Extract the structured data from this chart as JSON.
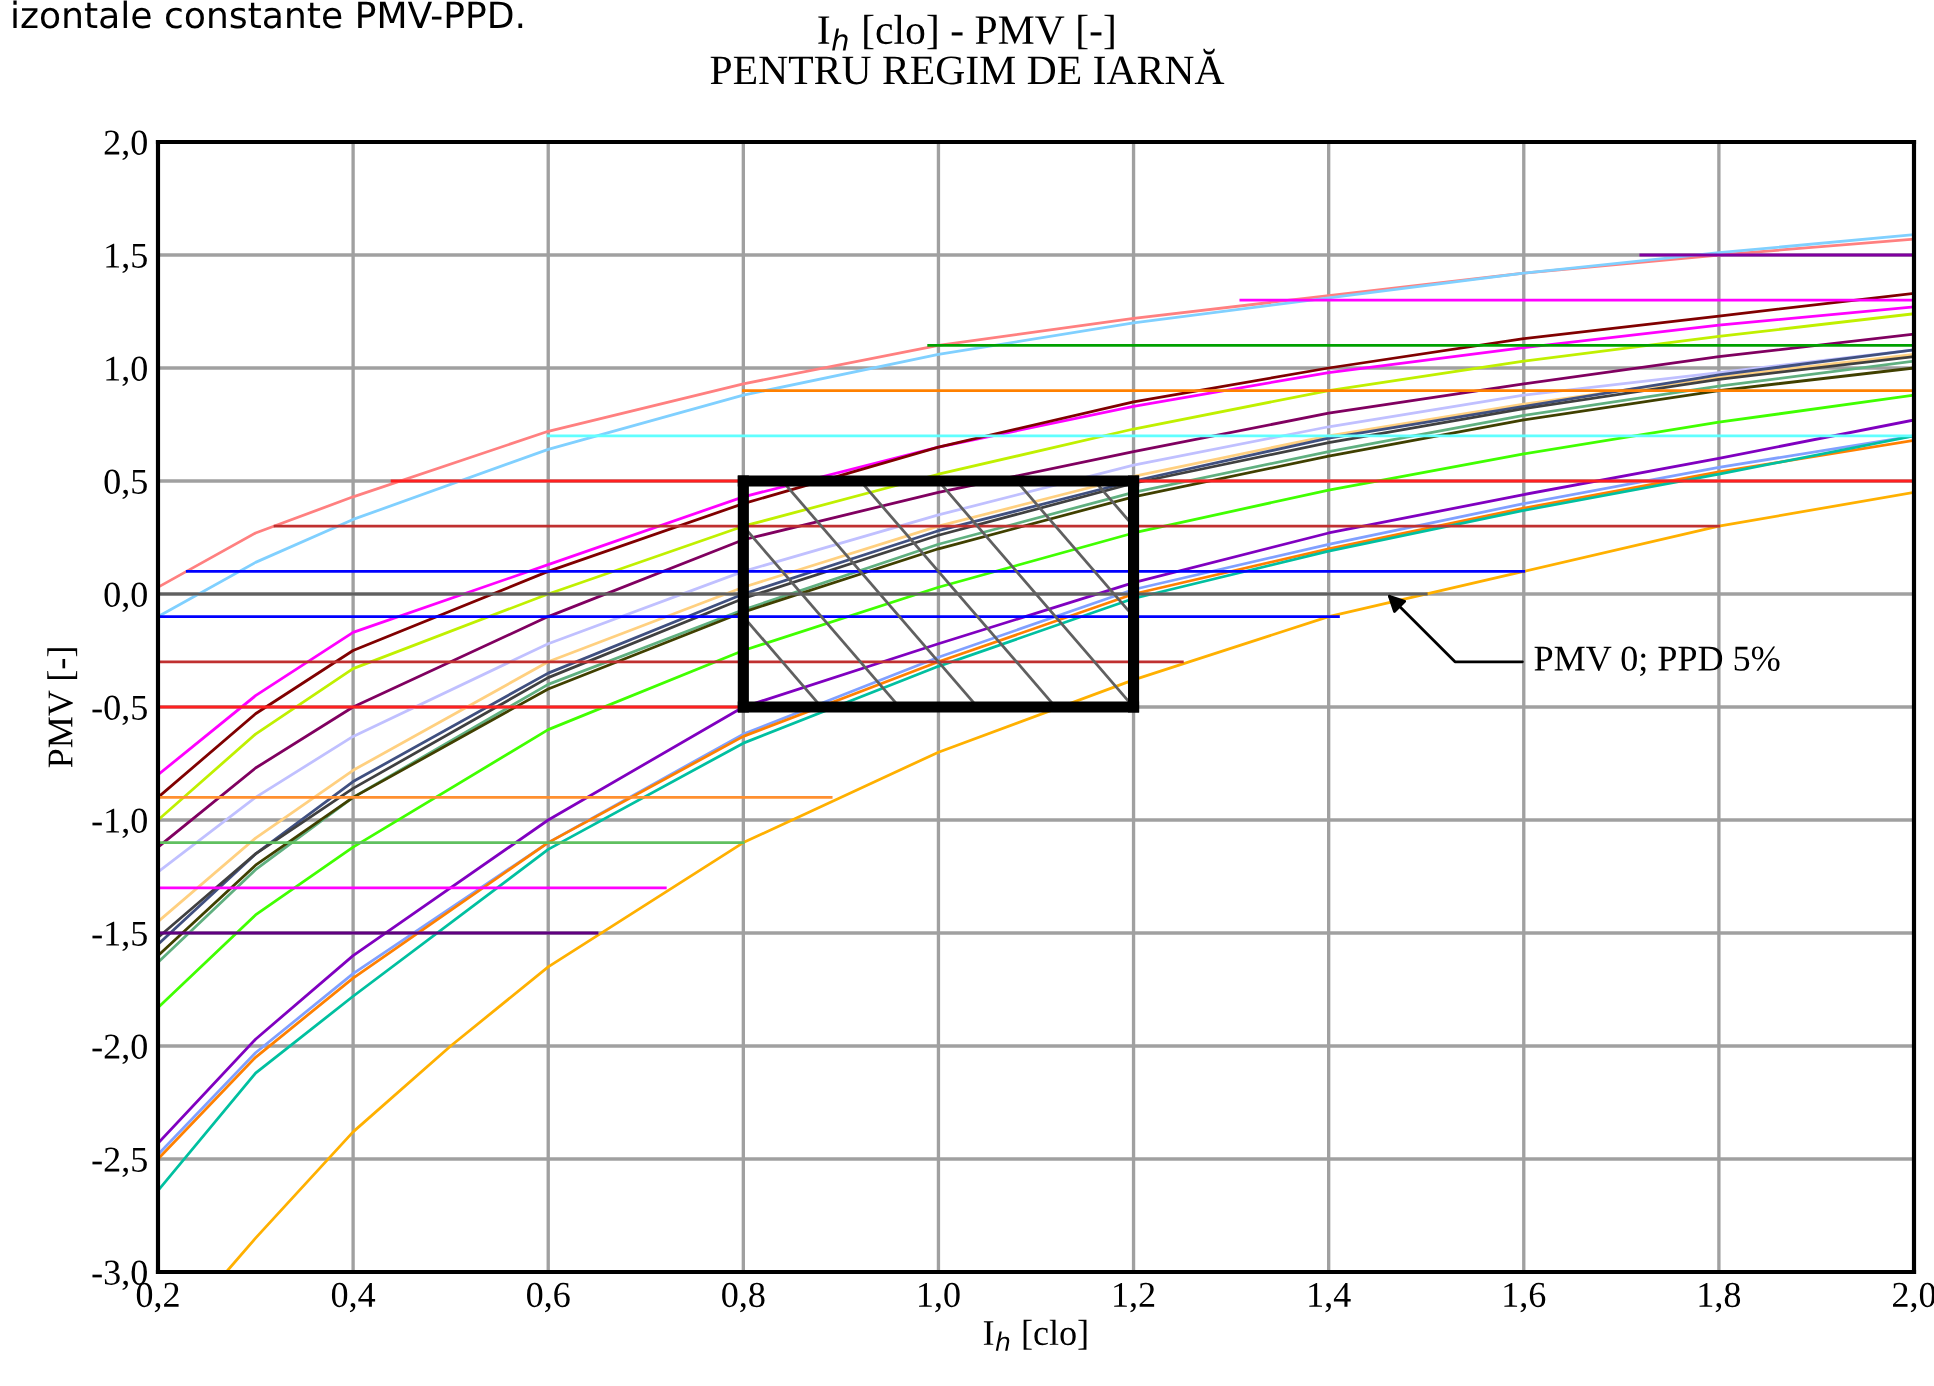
{
  "chart_data": {
    "type": "line",
    "title": "I$_{h}$ [clo] - PMV [-]",
    "subtitle": "PENTRU REGIM DE IARNĂ",
    "xlabel": "I$_{h}$ [clo]",
    "ylabel": "PMV [-]",
    "xlim": [
      0.2,
      2.0
    ],
    "ylim": [
      -3.0,
      2.0
    ],
    "xticks": [
      {
        "value": 0.2,
        "label": "0,2"
      },
      {
        "value": 0.4,
        "label": "0,4"
      },
      {
        "value": 0.6,
        "label": "0,6"
      },
      {
        "value": 0.8,
        "label": "0,8"
      },
      {
        "value": 1.0,
        "label": "1,0"
      },
      {
        "value": 1.2,
        "label": "1,2"
      },
      {
        "value": 1.4,
        "label": "1,4"
      },
      {
        "value": 1.6,
        "label": "1,6"
      },
      {
        "value": 1.8,
        "label": "1,8"
      },
      {
        "value": 2.0,
        "label": "2,0"
      }
    ],
    "yticks": [
      {
        "value": -3.0,
        "label": "-3,0"
      },
      {
        "value": -2.5,
        "label": "-2,5"
      },
      {
        "value": -2.0,
        "label": "-2,0"
      },
      {
        "value": -1.5,
        "label": "-1,5"
      },
      {
        "value": -1.0,
        "label": "-1,0"
      },
      {
        "value": -0.5,
        "label": "-0,5"
      },
      {
        "value": 0.0,
        "label": "0,0"
      },
      {
        "value": 0.5,
        "label": "0,5"
      },
      {
        "value": 1.0,
        "label": "1,0"
      },
      {
        "value": 1.5,
        "label": "1,5"
      },
      {
        "value": 2.0,
        "label": "2,0"
      }
    ],
    "grid": true,
    "legend": false,
    "marker": "none",
    "line_style": "solid",
    "annotations": [
      "izontale constante PMV-PPD.",
      {
        "text": "PMV 0; PPD 5%",
        "x": 1.46,
        "y": 0.0
      }
    ],
    "series": [
      {
        "color": "#ff8080",
        "x": [
          0.2,
          0.3,
          0.4,
          0.6,
          0.8,
          1.0,
          1.2,
          1.4,
          1.6,
          1.8,
          2.0
        ],
        "values": [
          0.03,
          0.27,
          0.43,
          0.72,
          0.93,
          1.1,
          1.22,
          1.32,
          1.42,
          1.5,
          1.57
        ]
      },
      {
        "color": "#80d0ff",
        "x": [
          0.2,
          0.3,
          0.4,
          0.6,
          0.8,
          1.0,
          1.2,
          1.4,
          1.6,
          1.8,
          2.0
        ],
        "values": [
          -0.1,
          0.14,
          0.33,
          0.64,
          0.88,
          1.06,
          1.2,
          1.31,
          1.42,
          1.51,
          1.59
        ]
      },
      {
        "color": "#ff00ff",
        "x": [
          0.2,
          0.3,
          0.4,
          0.6,
          0.8,
          1.0,
          1.2,
          1.4,
          1.6,
          1.8,
          2.0
        ],
        "values": [
          -0.8,
          -0.45,
          -0.17,
          0.13,
          0.43,
          0.65,
          0.83,
          0.98,
          1.09,
          1.19,
          1.27
        ]
      },
      {
        "color": "#800000",
        "x": [
          0.2,
          0.3,
          0.4,
          0.6,
          0.8,
          1.0,
          1.2,
          1.4,
          1.6,
          1.8,
          2.0
        ],
        "values": [
          -0.9,
          -0.53,
          -0.25,
          0.1,
          0.4,
          0.65,
          0.85,
          1.0,
          1.13,
          1.23,
          1.33
        ]
      },
      {
        "color": "#c0f000",
        "x": [
          0.2,
          0.3,
          0.4,
          0.6,
          0.8,
          1.0,
          1.2,
          1.4,
          1.6,
          1.8,
          2.0
        ],
        "values": [
          -1.0,
          -0.62,
          -0.33,
          0.0,
          0.3,
          0.53,
          0.73,
          0.9,
          1.03,
          1.14,
          1.24
        ]
      },
      {
        "color": "#800060",
        "x": [
          0.2,
          0.3,
          0.4,
          0.6,
          0.8,
          1.0,
          1.2,
          1.4,
          1.6,
          1.8,
          2.0
        ],
        "values": [
          -1.12,
          -0.77,
          -0.5,
          -0.1,
          0.24,
          0.45,
          0.63,
          0.8,
          0.93,
          1.05,
          1.15
        ]
      },
      {
        "color": "#c0c0ff",
        "x": [
          0.2,
          0.3,
          0.4,
          0.6,
          0.8,
          1.0,
          1.2,
          1.4,
          1.6,
          1.8,
          2.0
        ],
        "values": [
          -1.23,
          -0.9,
          -0.63,
          -0.22,
          0.1,
          0.35,
          0.57,
          0.74,
          0.88,
          0.98,
          1.08
        ]
      },
      {
        "color": "#ffd080",
        "x": [
          0.2,
          0.3,
          0.4,
          0.6,
          0.8,
          1.0,
          1.2,
          1.4,
          1.6,
          1.8,
          2.0
        ],
        "values": [
          -1.45,
          -1.08,
          -0.78,
          -0.3,
          0.03,
          0.3,
          0.52,
          0.7,
          0.84,
          0.96,
          1.06
        ]
      },
      {
        "color": "#405080",
        "x": [
          0.2,
          0.3,
          0.4,
          0.6,
          0.8,
          1.0,
          1.2,
          1.4,
          1.6,
          1.8,
          2.0
        ],
        "values": [
          -1.55,
          -1.15,
          -0.83,
          -0.35,
          0.0,
          0.28,
          0.5,
          0.69,
          0.83,
          0.97,
          1.08
        ]
      },
      {
        "color": "#404040",
        "x": [
          0.2,
          0.3,
          0.4,
          0.6,
          0.8,
          1.0,
          1.2,
          1.4,
          1.6,
          1.8,
          2.0
        ],
        "values": [
          -1.52,
          -1.15,
          -0.86,
          -0.37,
          -0.02,
          0.26,
          0.49,
          0.67,
          0.82,
          0.95,
          1.05
        ]
      },
      {
        "color": "#60b080",
        "x": [
          0.2,
          0.3,
          0.4,
          0.6,
          0.8,
          1.0,
          1.2,
          1.4,
          1.6,
          1.8,
          2.0
        ],
        "values": [
          -1.63,
          -1.22,
          -0.9,
          -0.4,
          -0.07,
          0.22,
          0.45,
          0.63,
          0.79,
          0.92,
          1.03
        ]
      },
      {
        "color": "#404000",
        "x": [
          0.2,
          0.3,
          0.4,
          0.6,
          0.8,
          1.0,
          1.2,
          1.4,
          1.6,
          1.8,
          2.0
        ],
        "values": [
          -1.6,
          -1.2,
          -0.9,
          -0.42,
          -0.08,
          0.2,
          0.43,
          0.61,
          0.77,
          0.9,
          1.0
        ]
      },
      {
        "color": "#40ff00",
        "x": [
          0.2,
          0.3,
          0.4,
          0.6,
          0.8,
          1.0,
          1.2,
          1.4,
          1.6,
          1.8,
          2.0
        ],
        "values": [
          -1.83,
          -1.42,
          -1.12,
          -0.6,
          -0.25,
          0.03,
          0.27,
          0.46,
          0.62,
          0.76,
          0.88
        ]
      },
      {
        "color": "#8000c0",
        "x": [
          0.2,
          0.3,
          0.4,
          0.6,
          0.8,
          1.0,
          1.2,
          1.4,
          1.6,
          1.8,
          2.0
        ],
        "values": [
          -2.43,
          -1.97,
          -1.6,
          -1.0,
          -0.5,
          -0.22,
          0.05,
          0.27,
          0.44,
          0.6,
          0.77
        ]
      },
      {
        "color": "#80a0ff",
        "x": [
          0.2,
          0.3,
          0.4,
          0.6,
          0.8,
          1.0,
          1.2,
          1.4,
          1.6,
          1.8,
          2.0
        ],
        "values": [
          -2.48,
          -2.03,
          -1.68,
          -1.1,
          -0.62,
          -0.28,
          0.02,
          0.22,
          0.4,
          0.56,
          0.7
        ]
      },
      {
        "color": "#ff8000",
        "x": [
          0.2,
          0.3,
          0.4,
          0.6,
          0.8,
          1.0,
          1.2,
          1.4,
          1.6,
          1.8,
          2.0
        ],
        "values": [
          -2.5,
          -2.05,
          -1.7,
          -1.1,
          -0.63,
          -0.3,
          0.0,
          0.2,
          0.38,
          0.54,
          0.68
        ]
      },
      {
        "color": "#00c0a0",
        "x": [
          0.2,
          0.3,
          0.4,
          0.6,
          0.8,
          1.0,
          1.2,
          1.4,
          1.6,
          1.8,
          2.0
        ],
        "values": [
          -2.64,
          -2.12,
          -1.78,
          -1.13,
          -0.66,
          -0.32,
          -0.02,
          0.19,
          0.37,
          0.53,
          0.7
        ]
      },
      {
        "color": "#ffb000",
        "x": [
          0.27,
          0.3,
          0.4,
          0.5,
          0.6,
          0.8,
          1.0,
          1.2,
          1.4,
          1.6,
          1.8,
          2.0
        ],
        "values": [
          -3.0,
          -2.85,
          -2.38,
          -2.0,
          -1.65,
          -1.1,
          -0.7,
          -0.38,
          -0.1,
          0.1,
          0.3,
          0.45
        ]
      },
      {
        "color": "#8000a0",
        "x": [
          1.72,
          2.0
        ],
        "values": [
          1.5,
          1.5
        ]
      },
      {
        "color": "#ff00ff",
        "x": [
          1.31,
          2.0
        ],
        "values": [
          1.3,
          1.3
        ]
      },
      {
        "color": "#00a000",
        "x": [
          0.99,
          2.0
        ],
        "values": [
          1.1,
          1.1
        ]
      },
      {
        "color": "#ff8000",
        "x": [
          0.8,
          2.0
        ],
        "values": [
          0.9,
          0.9
        ]
      },
      {
        "color": "#60ffff",
        "x": [
          0.6,
          2.0
        ],
        "values": [
          0.7,
          0.7
        ]
      },
      {
        "color": "#ff2020",
        "x": [
          0.44,
          2.0
        ],
        "values": [
          0.5,
          0.5
        ]
      },
      {
        "color": "#c03030",
        "x": [
          0.32,
          1.8
        ],
        "values": [
          0.3,
          0.3
        ]
      },
      {
        "color": "#0000ff",
        "x": [
          0.23,
          1.6
        ],
        "values": [
          0.1,
          0.1
        ]
      },
      {
        "color": "#606060",
        "x": [
          0.2,
          1.5
        ],
        "values": [
          0.0,
          0.0
        ]
      },
      {
        "color": "#0000ff",
        "x": [
          0.2,
          1.41
        ],
        "values": [
          -0.1,
          -0.1
        ]
      },
      {
        "color": "#c03030",
        "x": [
          0.2,
          1.25
        ],
        "values": [
          -0.3,
          -0.3
        ]
      },
      {
        "color": "#ff2020",
        "x": [
          0.2,
          0.8
        ],
        "values": [
          -0.5,
          -0.5
        ]
      },
      {
        "color": "#ff9030",
        "x": [
          0.2,
          0.89
        ],
        "values": [
          -0.9,
          -0.9
        ]
      },
      {
        "color": "#60c060",
        "x": [
          0.2,
          0.8
        ],
        "values": [
          -1.1,
          -1.1
        ]
      },
      {
        "color": "#ff00ff",
        "x": [
          0.2,
          0.72
        ],
        "values": [
          -1.3,
          -1.3
        ]
      },
      {
        "color": "#600080",
        "x": [
          0.2,
          0.65
        ],
        "values": [
          -1.5,
          -1.5
        ]
      },
      {
        "color": "#606060",
        "x": [
          0.8,
          0.88
        ],
        "values": [
          -0.1,
          -0.5
        ]
      },
      {
        "color": "#606060",
        "x": [
          0.8,
          0.96
        ],
        "values": [
          0.3,
          -0.5
        ]
      },
      {
        "color": "#606060",
        "x": [
          0.84,
          1.04
        ],
        "values": [
          0.5,
          -0.5
        ]
      },
      {
        "color": "#606060",
        "x": [
          0.92,
          1.12
        ],
        "values": [
          0.5,
          -0.5
        ]
      },
      {
        "color": "#606060",
        "x": [
          1.0,
          1.2
        ],
        "values": [
          0.5,
          -0.5
        ]
      },
      {
        "color": "#606060",
        "x": [
          1.08,
          1.2
        ],
        "values": [
          0.5,
          -0.1
        ]
      },
      {
        "color": "#606060",
        "x": [
          1.16,
          1.2
        ],
        "values": [
          0.5,
          0.3
        ]
      },
      {
        "color": "#000000",
        "x": [
          0.8,
          0.8
        ],
        "values": [
          -0.5,
          0.5
        ]
      },
      {
        "color": "#000000",
        "x": [
          0.8,
          1.2
        ],
        "values": [
          0.5,
          0.5
        ]
      },
      {
        "color": "#000000",
        "x": [
          1.2,
          1.2
        ],
        "values": [
          0.5,
          -0.5
        ]
      },
      {
        "color": "#000000",
        "x": [
          1.2,
          0.8
        ],
        "values": [
          -0.5,
          -0.5
        ]
      }
    ]
  }
}
